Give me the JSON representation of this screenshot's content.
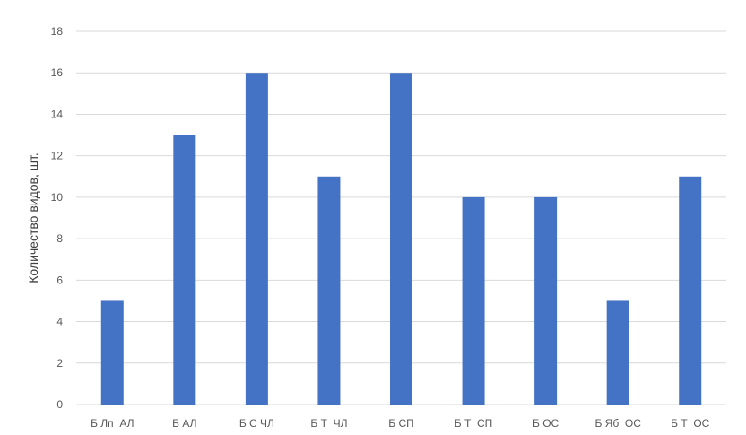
{
  "chart_data": {
    "type": "bar",
    "title": "",
    "xlabel": "",
    "ylabel": "Количество видов, шт.",
    "ylim": [
      0,
      18
    ],
    "yticks": [
      0,
      2,
      4,
      6,
      8,
      10,
      12,
      14,
      16,
      18
    ],
    "grid": true,
    "categories": [
      "Б Лп  АЛ",
      "Б АЛ",
      "Б С ЧЛ",
      "Б Т  ЧЛ",
      "Б СП",
      "Б Т  СП",
      "Б ОС",
      "Б Яб  ОС",
      "Б Т  ОС"
    ],
    "values": [
      5,
      13,
      16,
      11,
      16,
      10,
      10,
      5,
      11
    ],
    "bar_color": "#4472C4",
    "grid_color": "#D9D9D9"
  }
}
